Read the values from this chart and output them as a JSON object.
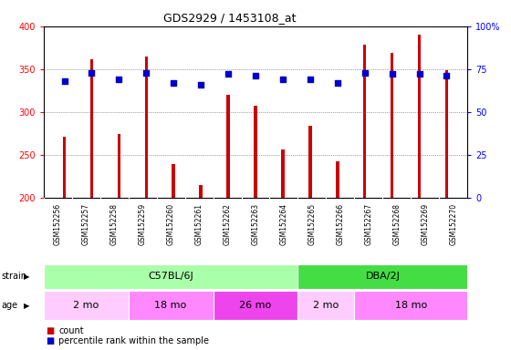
{
  "title": "GDS2929 / 1453108_at",
  "samples": [
    "GSM152256",
    "GSM152257",
    "GSM152258",
    "GSM152259",
    "GSM152260",
    "GSM152261",
    "GSM152262",
    "GSM152263",
    "GSM152264",
    "GSM152265",
    "GSM152266",
    "GSM152267",
    "GSM152268",
    "GSM152269",
    "GSM152270"
  ],
  "counts": [
    271,
    362,
    274,
    365,
    239,
    215,
    320,
    307,
    256,
    284,
    243,
    379,
    369,
    390,
    349
  ],
  "percentiles": [
    68,
    73,
    69,
    73,
    67,
    66,
    72,
    71,
    69,
    69,
    67,
    73,
    72,
    72,
    71
  ],
  "ylim_left": [
    200,
    400
  ],
  "ylim_right": [
    0,
    100
  ],
  "yticks_left": [
    200,
    250,
    300,
    350,
    400
  ],
  "yticks_right": [
    0,
    25,
    50,
    75,
    100
  ],
  "bar_color": "#cc0000",
  "dot_color": "#0000cc",
  "strain_groups": [
    {
      "label": "C57BL/6J",
      "start": 0,
      "end": 9,
      "color": "#aaffaa"
    },
    {
      "label": "DBA/2J",
      "start": 9,
      "end": 15,
      "color": "#44dd44"
    }
  ],
  "age_groups": [
    {
      "label": "2 mo",
      "start": 0,
      "end": 3,
      "color": "#ffccff"
    },
    {
      "label": "18 mo",
      "start": 3,
      "end": 6,
      "color": "#ff88ff"
    },
    {
      "label": "26 mo",
      "start": 6,
      "end": 9,
      "color": "#ee44ee"
    },
    {
      "label": "2 mo",
      "start": 9,
      "end": 11,
      "color": "#ffccff"
    },
    {
      "label": "18 mo",
      "start": 11,
      "end": 15,
      "color": "#ff88ff"
    }
  ],
  "legend_count_label": "count",
  "legend_pct_label": "percentile rank within the sample",
  "bar_width": 0.12,
  "xlab_bg_color": "#cccccc",
  "grid_color": "#333333"
}
